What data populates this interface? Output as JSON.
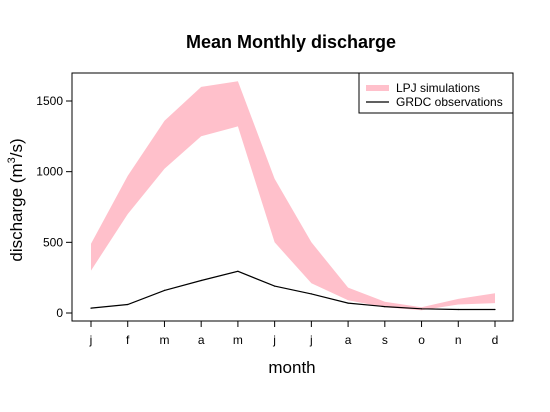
{
  "chart_data": {
    "type": "area",
    "title": "Mean Monthly discharge",
    "xlabel": "month",
    "ylabel_main": "discharge (m",
    "ylabel_sup": "3",
    "ylabel_end": "/s)",
    "categories": [
      "j",
      "f",
      "m",
      "a",
      "m",
      "j",
      "j",
      "a",
      "s",
      "o",
      "n",
      "d"
    ],
    "yticks": [
      0,
      500,
      1000,
      1500
    ],
    "ylim": [
      -50,
      1700
    ],
    "legend_position": "top-right",
    "series": [
      {
        "name": "LPJ simulations",
        "kind": "band",
        "color": "#ffc0cb",
        "lower": [
          300,
          700,
          1020,
          1250,
          1320,
          500,
          210,
          90,
          40,
          20,
          60,
          70
        ],
        "upper": [
          490,
          970,
          1360,
          1600,
          1640,
          950,
          500,
          180,
          80,
          40,
          100,
          140
        ]
      },
      {
        "name": "GRDC observations",
        "kind": "line",
        "color": "#000000",
        "values": [
          35,
          60,
          160,
          230,
          295,
          190,
          135,
          70,
          45,
          30,
          25,
          25
        ]
      }
    ]
  }
}
